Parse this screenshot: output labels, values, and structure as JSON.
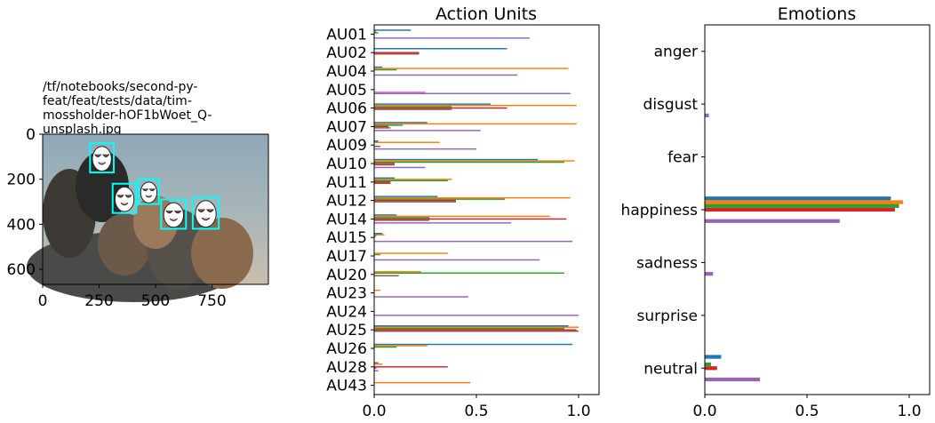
{
  "image_panel": {
    "title_lines": [
      "/tf/notebooks/second-py-",
      "feat/feat/tests/data/tim-",
      "mossholder-hOF1bWoet_Q-",
      "unsplash.jpg"
    ],
    "x_ticks": [
      "0",
      "250",
      "500",
      "750"
    ],
    "y_ticks": [
      "0",
      "200",
      "400",
      "600"
    ],
    "xlim": [
      0,
      1000
    ],
    "ylim": [
      0,
      667
    ],
    "faces": [
      {
        "x": 210,
        "y": 40,
        "w": 105,
        "h": 130
      },
      {
        "x": 310,
        "y": 220,
        "w": 105,
        "h": 130
      },
      {
        "x": 425,
        "y": 200,
        "w": 90,
        "h": 110
      },
      {
        "x": 525,
        "y": 290,
        "w": 110,
        "h": 130
      },
      {
        "x": 665,
        "y": 280,
        "w": 115,
        "h": 140
      }
    ],
    "colors": {
      "face_box": "#00ffff"
    }
  },
  "series_colors": [
    "#1f77b4",
    "#ff7f0e",
    "#2ca02c",
    "#d62728",
    "#8c564b",
    "#e377c2",
    "#9467bd"
  ],
  "chart_data": [
    {
      "type": "bar",
      "orientation": "horizontal",
      "title": "Action Units",
      "categories": [
        "AU01",
        "AU02",
        "AU04",
        "AU05",
        "AU06",
        "AU07",
        "AU09",
        "AU10",
        "AU11",
        "AU12",
        "AU14",
        "AU15",
        "AU17",
        "AU20",
        "AU23",
        "AU24",
        "AU25",
        "AU26",
        "AU28",
        "AU43"
      ],
      "xlim": [
        0,
        1.1
      ],
      "x_ticks": [
        "0.0",
        "0.5",
        "1.0"
      ],
      "series": [
        {
          "values": [
            0.18,
            0.65,
            0.04,
            0.0,
            0.57,
            0.26,
            0.02,
            0.8,
            0.1,
            0.31,
            0.11,
            0.04,
            0.0,
            0.0,
            0.0,
            0.0,
            0.95,
            0.97,
            0.02,
            0.0
          ]
        },
        {
          "values": [
            0.01,
            0.0,
            0.95,
            0.0,
            0.99,
            0.99,
            0.32,
            0.98,
            0.38,
            0.96,
            0.86,
            0.05,
            0.36,
            0.23,
            0.03,
            0.0,
            1.0,
            0.26,
            0.04,
            0.47
          ]
        },
        {
          "values": [
            0.02,
            0.0,
            0.11,
            0.0,
            0.38,
            0.14,
            0.0,
            0.93,
            0.36,
            0.64,
            0.27,
            0.01,
            0.03,
            0.93,
            0.0,
            0.0,
            0.93,
            0.11,
            0.0,
            0.0
          ]
        },
        {
          "values": [
            0.0,
            0.22,
            0.0,
            0.0,
            0.65,
            0.07,
            0.0,
            0.1,
            0.08,
            0.4,
            0.94,
            0.0,
            0.0,
            0.0,
            0.0,
            0.0,
            0.99,
            0.0,
            0.36,
            0.0
          ]
        },
        {
          "values": [
            0.0,
            0.22,
            0.0,
            0.0,
            0.38,
            0.08,
            0.03,
            0.1,
            0.08,
            0.4,
            0.27,
            0.0,
            0.0,
            0.12,
            0.0,
            0.0,
            1.0,
            0.0,
            0.01,
            0.0
          ]
        },
        {
          "values": [
            0.0,
            0.0,
            0.0,
            0.25,
            0.0,
            0.0,
            0.0,
            0.0,
            0.0,
            0.0,
            0.0,
            0.0,
            0.0,
            0.0,
            0.0,
            0.0,
            0.0,
            0.0,
            0.0,
            0.0
          ]
        },
        {
          "values": [
            0.76,
            0.0,
            0.7,
            0.96,
            0.0,
            0.52,
            0.5,
            0.25,
            0.0,
            0.0,
            0.67,
            0.97,
            0.81,
            0.0,
            0.46,
            1.0,
            0.0,
            0.0,
            0.02,
            0.0
          ]
        }
      ]
    },
    {
      "type": "bar",
      "orientation": "horizontal",
      "title": "Emotions",
      "categories": [
        "anger",
        "disgust",
        "fear",
        "happiness",
        "sadness",
        "surprise",
        "neutral"
      ],
      "xlim": [
        0,
        1.1
      ],
      "x_ticks": [
        "0.0",
        "0.5",
        "1.0"
      ],
      "series": [
        {
          "values": [
            0.0,
            0.0,
            0.0,
            0.91,
            0.0,
            0.0,
            0.08
          ]
        },
        {
          "values": [
            0.0,
            0.0,
            0.0,
            0.97,
            0.0,
            0.0,
            0.0
          ]
        },
        {
          "values": [
            0.0,
            0.0,
            0.0,
            0.95,
            0.0,
            0.0,
            0.03
          ]
        },
        {
          "values": [
            0.0,
            0.0,
            0.0,
            0.93,
            0.0,
            0.0,
            0.06
          ]
        },
        {
          "values": [
            0.0,
            0.0,
            0.0,
            0.0,
            0.0,
            0.0,
            0.0
          ]
        },
        {
          "values": [
            0.0,
            0.0,
            0.0,
            0.0,
            0.0,
            0.0,
            0.0
          ]
        },
        {
          "values": [
            0.0,
            0.02,
            0.0,
            0.66,
            0.04,
            0.0,
            0.27
          ]
        }
      ]
    }
  ]
}
